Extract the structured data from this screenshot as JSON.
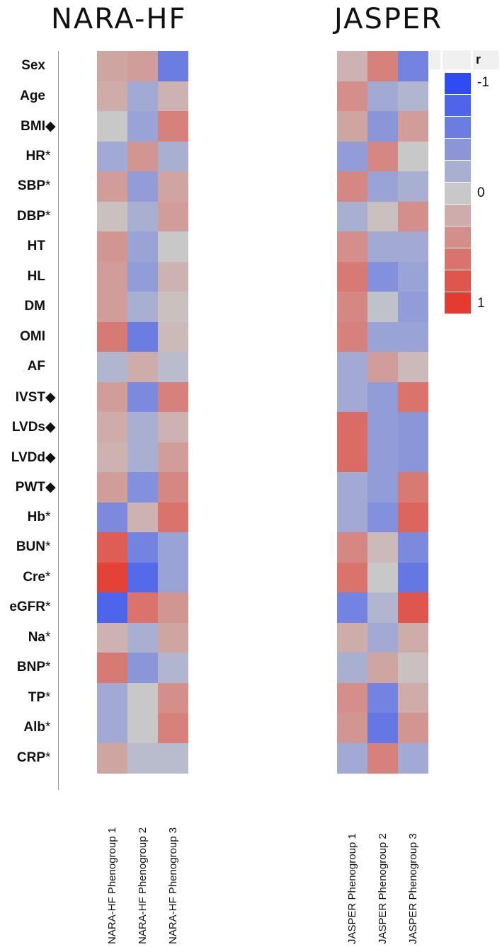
{
  "panels": [
    {
      "title": "NARA-HF",
      "columns": [
        "NARA-HF Phenogroup 1",
        "NARA-HF Phenogroup 2",
        "NARA-HF Phenogroup 3"
      ]
    },
    {
      "title": "JASPER",
      "columns": [
        "JASPER Phenogroup 1",
        "JASPER Phenogroup 2",
        "JASPER Phenogroup 3"
      ]
    }
  ],
  "chart_data": {
    "type": "heatmap",
    "rows": [
      {
        "label": "Sex",
        "marker": ""
      },
      {
        "label": "Age",
        "marker": ""
      },
      {
        "label": "BMI",
        "marker": "◆"
      },
      {
        "label": "HR",
        "marker": "*"
      },
      {
        "label": "SBP",
        "marker": "*"
      },
      {
        "label": "DBP",
        "marker": "*"
      },
      {
        "label": "HT",
        "marker": ""
      },
      {
        "label": "HL",
        "marker": ""
      },
      {
        "label": "DM",
        "marker": ""
      },
      {
        "label": "OMI",
        "marker": ""
      },
      {
        "label": "AF",
        "marker": ""
      },
      {
        "label": "IVST",
        "marker": "◆"
      },
      {
        "label": "LVDs",
        "marker": "◆"
      },
      {
        "label": "LVDd",
        "marker": "◆"
      },
      {
        "label": "PWT",
        "marker": "◆"
      },
      {
        "label": "Hb",
        "marker": "*"
      },
      {
        "label": "BUN",
        "marker": "*"
      },
      {
        "label": "Cre",
        "marker": "*"
      },
      {
        "label": "eGFR",
        "marker": "*"
      },
      {
        "label": "Na",
        "marker": "*"
      },
      {
        "label": "BNP",
        "marker": "*"
      },
      {
        "label": "TP",
        "marker": "*"
      },
      {
        "label": "Alb",
        "marker": "*"
      },
      {
        "label": "CRP",
        "marker": "*"
      }
    ],
    "nara_values": [
      [
        0.25,
        0.3,
        -0.6
      ],
      [
        0.2,
        -0.25,
        0.15
      ],
      [
        0.0,
        -0.3,
        0.5
      ],
      [
        -0.25,
        0.35,
        -0.2
      ],
      [
        0.3,
        -0.35,
        0.25
      ],
      [
        0.05,
        -0.2,
        0.3
      ],
      [
        0.35,
        -0.3,
        0.0
      ],
      [
        0.3,
        -0.35,
        0.15
      ],
      [
        0.3,
        -0.2,
        0.05
      ],
      [
        0.55,
        -0.6,
        0.1
      ],
      [
        -0.15,
        0.2,
        -0.1
      ],
      [
        0.3,
        -0.5,
        0.5
      ],
      [
        0.2,
        -0.2,
        0.15
      ],
      [
        0.15,
        -0.2,
        0.3
      ],
      [
        0.3,
        -0.45,
        0.45
      ],
      [
        -0.5,
        0.15,
        0.6
      ],
      [
        0.75,
        -0.55,
        -0.3
      ],
      [
        0.95,
        -0.75,
        -0.3
      ],
      [
        -0.8,
        0.6,
        0.35
      ],
      [
        0.15,
        -0.2,
        0.25
      ],
      [
        0.55,
        -0.4,
        -0.15
      ],
      [
        -0.25,
        0.0,
        0.4
      ],
      [
        -0.25,
        0.0,
        0.5
      ],
      [
        0.25,
        -0.1,
        -0.1
      ]
    ],
    "jasper_values": [
      [
        0.15,
        0.5,
        -0.55
      ],
      [
        0.4,
        -0.25,
        -0.15
      ],
      [
        0.25,
        -0.4,
        0.3
      ],
      [
        -0.35,
        0.45,
        0.0
      ],
      [
        0.45,
        -0.3,
        -0.2
      ],
      [
        -0.2,
        0.05,
        0.4
      ],
      [
        0.4,
        -0.25,
        -0.25
      ],
      [
        0.55,
        -0.45,
        -0.3
      ],
      [
        0.45,
        -0.05,
        -0.35
      ],
      [
        0.5,
        -0.3,
        -0.3
      ],
      [
        -0.25,
        0.3,
        0.1
      ],
      [
        -0.25,
        -0.35,
        0.6
      ],
      [
        0.65,
        -0.35,
        -0.4
      ],
      [
        0.65,
        -0.35,
        -0.4
      ],
      [
        -0.25,
        -0.35,
        0.55
      ],
      [
        -0.25,
        -0.45,
        0.7
      ],
      [
        0.45,
        0.1,
        -0.5
      ],
      [
        0.6,
        0.0,
        -0.65
      ],
      [
        -0.55,
        -0.15,
        0.8
      ],
      [
        0.2,
        -0.25,
        0.2
      ],
      [
        -0.2,
        0.25,
        0.05
      ],
      [
        0.4,
        -0.55,
        0.2
      ],
      [
        0.35,
        -0.65,
        0.35
      ],
      [
        -0.25,
        0.5,
        -0.25
      ]
    ],
    "legend": {
      "title": "r",
      "min": -1,
      "max": 1,
      "ticks": [
        "-1",
        "0",
        "1"
      ]
    },
    "colors": {
      "negative": "#2f4bf2",
      "neutral": "#c8c8c8",
      "positive": "#e53a2f"
    }
  }
}
